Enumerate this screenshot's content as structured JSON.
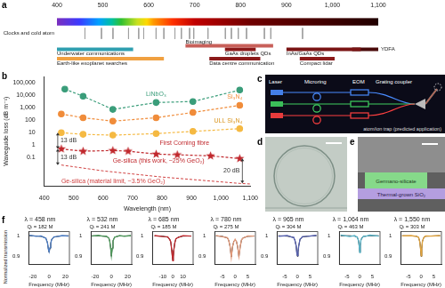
{
  "panel_labels": [
    "a",
    "b",
    "c",
    "d",
    "e",
    "f"
  ],
  "chart_data": [
    {
      "type": "range",
      "xlim": [
        400,
        1100
      ],
      "xticks": [
        400,
        500,
        600,
        700,
        800,
        900,
        {
          "value": 1000,
          "label": "1,000"
        },
        {
          "value": 1100,
          "label": "1,100"
        }
      ],
      "grid": false,
      "tick_labels": "x",
      "lines": {
        "name": "Clocks and cold atom",
        "color": "#a0a0a0",
        "x": [
          461,
          497,
          522,
          556,
          578,
          589,
          616,
          633,
          657,
          671,
          689,
          698,
          729,
          767,
          780,
          795,
          813,
          852,
          866,
          935
        ]
      },
      "series": [
        {
          "name": "Bioimaging",
          "color": "#c8605a",
          "values": [
            680,
            871
          ]
        },
        {
          "name": "GaAs droplets QDs",
          "color": "#8b1a1a",
          "values": [
            766,
            833
          ]
        },
        {
          "name": "InAs/GaAs QDs",
          "color": "#7a1414",
          "values": [
            900,
            1062
          ]
        },
        {
          "name": "YDFA",
          "color": "#4a0a0a",
          "values": [
            1043,
            1100
          ]
        },
        {
          "name": "Underwater communications",
          "color": "#2f9fb0",
          "values": [
            400,
            566
          ]
        },
        {
          "name": "Earth-like exoplanet searches",
          "color": "#f0a040",
          "values": [
            400,
            633
          ]
        },
        {
          "name": "Data centre communication",
          "color": "#8b1a1a",
          "values": [
            732,
            843
          ]
        },
        {
          "name": "Compact lidar",
          "color": "#8b1a1a",
          "values": [
            929,
            1005
          ]
        }
      ]
    },
    {
      "type": "line",
      "xlabel": "Wavelength (nm)",
      "ylabel": "Waveguide loss (dB m⁻¹)",
      "log": "y",
      "xlim": [
        400,
        1100
      ],
      "xticks": [
        400,
        500,
        600,
        700,
        800,
        900,
        {
          "value": 1000,
          "label": "1,000"
        },
        {
          "value": 1100,
          "label": "1,100"
        }
      ],
      "ylim": [
        0.0005,
        300000
      ],
      "yticks": [
        0.1,
        1,
        10,
        100,
        {
          "value": 1000,
          "label": "1,000"
        },
        {
          "value": 10000,
          "label": "10,000"
        },
        {
          "value": 100000,
          "label": "100,000"
        }
      ],
      "grid": false,
      "series": [
        {
          "name": "LiNbO₃",
          "color": "#3a9d7a",
          "marker": "circle",
          "line_style": "dashed",
          "x": [
            470,
            532,
            633,
            780,
            905,
            1064
          ],
          "values": [
            30000,
            8000,
            700,
            2500,
            3000,
            25000
          ]
        },
        {
          "name": "Si₃N₄",
          "color": "#f08c3a",
          "marker": "circle",
          "line_style": "dashed",
          "x": [
            458,
            532,
            633,
            780,
            905,
            1064
          ],
          "values": [
            300,
            150,
            80,
            150,
            400,
            1500
          ]
        },
        {
          "name": "ULL Si₃N₄",
          "color": "#f5b942",
          "marker": "circle",
          "line_style": "dashed",
          "x": [
            458,
            532,
            633,
            780,
            905,
            1064
          ],
          "values": [
            9.4,
            7,
            6,
            8,
            12,
            20
          ]
        },
        {
          "name": "Ge-silica (this work, ~25% GeO₂)",
          "color": "#c0282d",
          "marker": "star",
          "line_style": "dashed",
          "x": [
            458,
            532,
            633,
            685,
            780,
            852,
            965,
            1064
          ],
          "values": [
            0.47,
            0.31,
            0.35,
            0.31,
            0.18,
            0.16,
            0.13,
            0.08
          ]
        },
        {
          "name": "Ge-silica (material limit, ~3.5% GeO₂)",
          "color": "#d04040",
          "marker": "none",
          "line_style": "dashed",
          "x": [
            458,
            600,
            800,
            1064,
            1100
          ],
          "values": [
            0.024,
            0.0081,
            0.0026,
            0.0008,
            0.00072
          ]
        }
      ],
      "annotations": [
        "13 dB",
        "13 dB",
        "20 dB",
        "First Corning fibre"
      ]
    },
    {
      "type": "line",
      "title": "λ = 458 nm",
      "subtitle": "Qₗ = 182 M",
      "xlabel": "Frequency (MHz)",
      "ylabel": "Normalized transmission",
      "x": [
        -24,
        -16,
        -10,
        -6,
        -4,
        -3,
        -2,
        -1,
        0,
        1,
        2,
        3,
        4,
        6,
        10,
        16,
        24
      ],
      "xlim": [
        -25,
        25
      ],
      "xticks": [
        -20,
        0,
        20
      ],
      "ylim": [
        0.86,
        1.02
      ],
      "yticks": [
        0.9,
        1
      ],
      "grid": false,
      "series": [
        {
          "color": "#4a7cc4",
          "line_style": "solid",
          "values": [
            1.003,
            0.997,
            0.999,
            0.991,
            0.989,
            0.976,
            0.967,
            0.936,
            0.922,
            0.942,
            0.961,
            0.981,
            0.985,
            0.995,
            0.996,
            1.001,
            0.998
          ]
        },
        {
          "color": "#000000",
          "line_style": "solid",
          "values": [
            1.0,
            0.999,
            0.997,
            0.993,
            0.987,
            0.979,
            0.964,
            0.939,
            0.92,
            0.939,
            0.964,
            0.979,
            0.987,
            0.993,
            0.997,
            0.999,
            1.0
          ]
        }
      ]
    },
    {
      "type": "line",
      "title": "λ = 532 nm",
      "subtitle": "Qₗ = 241 M",
      "xlabel": "Frequency (MHz)",
      "x": [
        -24,
        -16,
        -10,
        -6,
        -4,
        -3,
        -2,
        -1,
        0,
        1,
        2,
        3,
        4,
        6,
        10,
        16,
        24
      ],
      "xlim": [
        -25,
        25
      ],
      "xticks": [
        -20,
        0,
        20
      ],
      "ylim": [
        0.86,
        1.02
      ],
      "yticks": [
        0.9,
        1
      ],
      "grid": false,
      "series": [
        {
          "color": "#4f9a5c",
          "line_style": "solid",
          "values": [
            0.998,
            1.002,
            0.997,
            0.998,
            0.99,
            0.988,
            0.971,
            0.944,
            0.903,
            0.938,
            0.976,
            0.984,
            0.994,
            0.995,
            1.001,
            0.997,
            1.001
          ]
        },
        {
          "color": "#000000",
          "line_style": "solid",
          "values": [
            1.0,
            0.999,
            0.999,
            0.996,
            0.992,
            0.986,
            0.974,
            0.941,
            0.9,
            0.941,
            0.974,
            0.986,
            0.992,
            0.996,
            0.999,
            0.999,
            1.0
          ]
        }
      ]
    },
    {
      "type": "line",
      "title": "λ = 685 nm",
      "subtitle": "Qₗ = 185 M",
      "xlabel": "Frequency (MHz)",
      "x": [
        -18,
        -10,
        -5,
        -3,
        -2,
        -1,
        -0.5,
        0,
        0.5,
        1,
        2,
        3,
        5,
        10,
        18
      ],
      "xlim": [
        -20,
        20
      ],
      "xticks": [
        -10,
        0,
        10
      ],
      "ylim": [
        0.86,
        1.02
      ],
      "yticks": [
        0.9,
        1
      ],
      "grid": false,
      "series": [
        {
          "color": "#c0282d",
          "line_style": "solid",
          "values": [
            1.001,
            0.996,
            0.995,
            0.981,
            0.971,
            0.926,
            0.901,
            0.878,
            0.895,
            0.932,
            0.965,
            0.985,
            0.991,
            1.0,
            0.998
          ]
        },
        {
          "color": "#000000",
          "line_style": "solid",
          "values": [
            0.999,
            0.998,
            0.993,
            0.983,
            0.968,
            0.929,
            0.898,
            0.88,
            0.898,
            0.929,
            0.968,
            0.983,
            0.993,
            0.998,
            0.999
          ]
        }
      ]
    },
    {
      "type": "line",
      "title": "λ = 780 nm",
      "subtitle": "Qₗ = 275 M",
      "xlabel": "Frequency (MHz)",
      "x": [
        -7.5,
        -5,
        -3,
        -2.5,
        -2,
        -1.5,
        -1,
        -0.5,
        0,
        0.5,
        1,
        1.5,
        2,
        2.5,
        3,
        5,
        7.5
      ],
      "xlim": [
        -8,
        8
      ],
      "xticks": [
        -5,
        0,
        5
      ],
      "ylim": [
        0.86,
        1.02
      ],
      "yticks": [
        0.9,
        1
      ],
      "grid": false,
      "series": [
        {
          "color": "#e39a7a",
          "line_style": "solid",
          "values": [
            1.002,
            0.995,
            0.991,
            0.975,
            0.951,
            0.894,
            0.949,
            0.971,
            0.983,
            0.972,
            0.948,
            0.899,
            0.945,
            0.98,
            0.987,
            0.999,
            0.998
          ]
        },
        {
          "color": "#000000",
          "line_style": "solid",
          "values": [
            0.999,
            0.997,
            0.989,
            0.978,
            0.948,
            0.897,
            0.946,
            0.974,
            0.98,
            0.974,
            0.946,
            0.897,
            0.948,
            0.978,
            0.989,
            0.997,
            0.999
          ]
        }
      ]
    },
    {
      "type": "line",
      "title": "λ = 965 nm",
      "subtitle": "Qₗ = 304 M",
      "xlabel": "Frequency (MHz)",
      "x": [
        -7.5,
        -4,
        -2,
        -1.5,
        -1,
        -0.5,
        -0.25,
        0,
        0.25,
        0.5,
        1,
        1.5,
        2,
        4,
        7.5
      ],
      "xlim": [
        -8,
        8
      ],
      "xticks": [
        -5,
        0,
        5
      ],
      "ylim": [
        0.86,
        1.02
      ],
      "yticks": [
        0.9,
        1
      ],
      "grid": false,
      "series": [
        {
          "color": "#5560b0",
          "line_style": "solid",
          "values": [
            0.997,
            1.001,
            0.992,
            0.993,
            0.978,
            0.953,
            0.917,
            0.903,
            0.922,
            0.947,
            0.983,
            0.988,
            0.996,
            0.997,
            1.002
          ]
        },
        {
          "color": "#000000",
          "line_style": "solid",
          "values": [
            1.0,
            0.998,
            0.994,
            0.99,
            0.98,
            0.95,
            0.92,
            0.9,
            0.92,
            0.95,
            0.98,
            0.99,
            0.994,
            0.998,
            1.0
          ]
        }
      ]
    },
    {
      "type": "line",
      "title": "λ = 1,064 nm",
      "subtitle": "Qₗ = 463 M",
      "xlabel": "Frequency (MHz)",
      "x": [
        -7.5,
        -4,
        -2,
        -1.5,
        -1,
        -0.5,
        -0.25,
        0,
        0.25,
        0.5,
        1,
        1.5,
        2,
        4,
        7.5
      ],
      "xlim": [
        -8,
        8
      ],
      "xticks": [
        -5,
        0,
        5
      ],
      "ylim": [
        0.86,
        1.02
      ],
      "yticks": [
        0.9,
        1
      ],
      "grid": false,
      "series": [
        {
          "color": "#58b4c8",
          "line_style": "solid",
          "values": [
            1.004,
            0.996,
            1.001,
            0.994,
            0.995,
            0.976,
            0.957,
            0.918,
            0.949,
            0.982,
            0.99,
            0.999,
            0.996,
            1.003,
            0.998
          ]
        },
        {
          "color": "#000000",
          "line_style": "solid",
          "values": [
            1.0,
            1.0,
            0.998,
            0.997,
            0.993,
            0.979,
            0.953,
            0.92,
            0.953,
            0.979,
            0.993,
            0.997,
            0.998,
            1.0,
            1.0
          ]
        }
      ]
    },
    {
      "type": "line",
      "title": "λ = 1,550 nm",
      "subtitle": "Qₗ = 303 M",
      "xlabel": "Frequency (MHz)",
      "x": [
        -7.5,
        -4,
        -2,
        -1.5,
        -1,
        -0.5,
        -0.25,
        0,
        0.25,
        0.5,
        1,
        1.5,
        2,
        4,
        7.5
      ],
      "xlim": [
        -8,
        8
      ],
      "xticks": [
        -5,
        0,
        5
      ],
      "ylim": [
        0.86,
        1.02
      ],
      "yticks": [
        0.9,
        1
      ],
      "grid": false,
      "series": [
        {
          "color": "#e0a23c",
          "line_style": "solid",
          "values": [
            0.999,
            1.001,
            0.997,
            0.995,
            0.993,
            0.968,
            0.941,
            0.902,
            0.935,
            0.973,
            0.989,
            0.997,
            0.999,
            0.998,
            1.001
          ]
        },
        {
          "color": "#000000",
          "line_style": "solid",
          "values": [
            1.0,
            0.999,
            0.998,
            0.996,
            0.991,
            0.971,
            0.938,
            0.9,
            0.938,
            0.971,
            0.991,
            0.996,
            0.998,
            0.999,
            1.0
          ]
        }
      ]
    }
  ],
  "diagram_c": {
    "labels": [
      "Laser",
      "Microring",
      "EOM",
      "Grating coupler"
    ],
    "annotation": "atom/ion trap (predicted application)"
  },
  "image_e": {
    "labels": [
      "Germano-silicate",
      "Thermal-grown SiO₂"
    ]
  }
}
